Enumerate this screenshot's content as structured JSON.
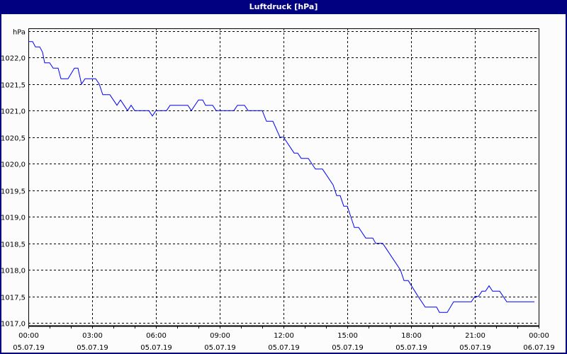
{
  "window": {
    "title": "Luftdruck [hPa]"
  },
  "chart_data": {
    "type": "line",
    "title": "Luftdruck [hPa]",
    "ylabel": "hPa",
    "xlabel": "",
    "ylim": [
      1016.95,
      1022.55
    ],
    "xlim_hours": [
      0,
      24
    ],
    "grid": true,
    "line_color": "#0000ff",
    "y_ticks": [
      {
        "value": 1017.0,
        "label": "1017,0"
      },
      {
        "value": 1017.5,
        "label": "1017,5"
      },
      {
        "value": 1018.0,
        "label": "1018,0"
      },
      {
        "value": 1018.5,
        "label": "1018,5"
      },
      {
        "value": 1019.0,
        "label": "1019,0"
      },
      {
        "value": 1019.5,
        "label": "1019,5"
      },
      {
        "value": 1020.0,
        "label": "1020,0"
      },
      {
        "value": 1020.5,
        "label": "1020,5"
      },
      {
        "value": 1021.0,
        "label": "1021,0"
      },
      {
        "value": 1021.5,
        "label": "1021,5"
      },
      {
        "value": 1022.0,
        "label": "1022,0"
      },
      {
        "value": 1022.5,
        "label": "hPa"
      }
    ],
    "x_ticks": [
      {
        "hour": 0,
        "time": "00:00",
        "date": "05.07.19"
      },
      {
        "hour": 3,
        "time": "03:00",
        "date": "05.07.19"
      },
      {
        "hour": 6,
        "time": "06:00",
        "date": "05.07.19"
      },
      {
        "hour": 9,
        "time": "09:00",
        "date": "05.07.19"
      },
      {
        "hour": 12,
        "time": "12:00",
        "date": "05.07.19"
      },
      {
        "hour": 15,
        "time": "15:00",
        "date": "05.07.19"
      },
      {
        "hour": 18,
        "time": "18:00",
        "date": "05.07.19"
      },
      {
        "hour": 21,
        "time": "21:00",
        "date": "05.07.19"
      },
      {
        "hour": 24,
        "time": "00:00",
        "date": "06.07.19"
      }
    ],
    "points": [
      [
        "00:00",
        1022.3
      ],
      [
        "00:12",
        1022.3
      ],
      [
        "00:20",
        1022.2
      ],
      [
        "00:32",
        1022.2
      ],
      [
        "00:40",
        1022.1
      ],
      [
        "00:46",
        1021.9
      ],
      [
        "01:00",
        1021.9
      ],
      [
        "01:10",
        1021.8
      ],
      [
        "01:24",
        1021.8
      ],
      [
        "01:32",
        1021.6
      ],
      [
        "01:52",
        1021.6
      ],
      [
        "02:10",
        1021.8
      ],
      [
        "02:20",
        1021.8
      ],
      [
        "02:30",
        1021.5
      ],
      [
        "02:40",
        1021.6
      ],
      [
        "03:10",
        1021.6
      ],
      [
        "03:20",
        1021.5
      ],
      [
        "03:30",
        1021.3
      ],
      [
        "03:50",
        1021.3
      ],
      [
        "04:10",
        1021.1
      ],
      [
        "04:20",
        1021.2
      ],
      [
        "04:40",
        1021.0
      ],
      [
        "04:50",
        1021.1
      ],
      [
        "05:00",
        1021.0
      ],
      [
        "05:40",
        1021.0
      ],
      [
        "05:50",
        1020.9
      ],
      [
        "06:00",
        1021.0
      ],
      [
        "06:30",
        1021.0
      ],
      [
        "06:40",
        1021.1
      ],
      [
        "07:30",
        1021.1
      ],
      [
        "07:40",
        1021.0
      ],
      [
        "08:00",
        1021.2
      ],
      [
        "08:12",
        1021.2
      ],
      [
        "08:20",
        1021.1
      ],
      [
        "08:40",
        1021.1
      ],
      [
        "08:50",
        1021.0
      ],
      [
        "09:40",
        1021.0
      ],
      [
        "09:50",
        1021.1
      ],
      [
        "10:10",
        1021.1
      ],
      [
        "10:20",
        1021.0
      ],
      [
        "11:00",
        1021.0
      ],
      [
        "11:12",
        1020.8
      ],
      [
        "11:30",
        1020.8
      ],
      [
        "11:50",
        1020.5
      ],
      [
        "12:00",
        1020.5
      ],
      [
        "12:30",
        1020.2
      ],
      [
        "12:40",
        1020.2
      ],
      [
        "12:50",
        1020.1
      ],
      [
        "13:10",
        1020.1
      ],
      [
        "13:30",
        1019.9
      ],
      [
        "13:50",
        1019.9
      ],
      [
        "14:20",
        1019.6
      ],
      [
        "14:30",
        1019.4
      ],
      [
        "14:40",
        1019.4
      ],
      [
        "14:50",
        1019.2
      ],
      [
        "15:00",
        1019.2
      ],
      [
        "15:20",
        1018.8
      ],
      [
        "15:32",
        1018.8
      ],
      [
        "15:52",
        1018.6
      ],
      [
        "16:12",
        1018.6
      ],
      [
        "16:20",
        1018.5
      ],
      [
        "16:40",
        1018.5
      ],
      [
        "17:30",
        1018.0
      ],
      [
        "17:40",
        1017.8
      ],
      [
        "17:52",
        1017.8
      ],
      [
        "18:20",
        1017.5
      ],
      [
        "18:40",
        1017.3
      ],
      [
        "19:12",
        1017.3
      ],
      [
        "19:20",
        1017.2
      ],
      [
        "19:42",
        1017.2
      ],
      [
        "20:00",
        1017.4
      ],
      [
        "20:50",
        1017.4
      ],
      [
        "21:00",
        1017.5
      ],
      [
        "21:10",
        1017.5
      ],
      [
        "21:20",
        1017.6
      ],
      [
        "21:30",
        1017.6
      ],
      [
        "21:40",
        1017.7
      ],
      [
        "21:50",
        1017.6
      ],
      [
        "22:10",
        1017.6
      ],
      [
        "22:30",
        1017.4
      ],
      [
        "23:48",
        1017.4
      ]
    ]
  }
}
